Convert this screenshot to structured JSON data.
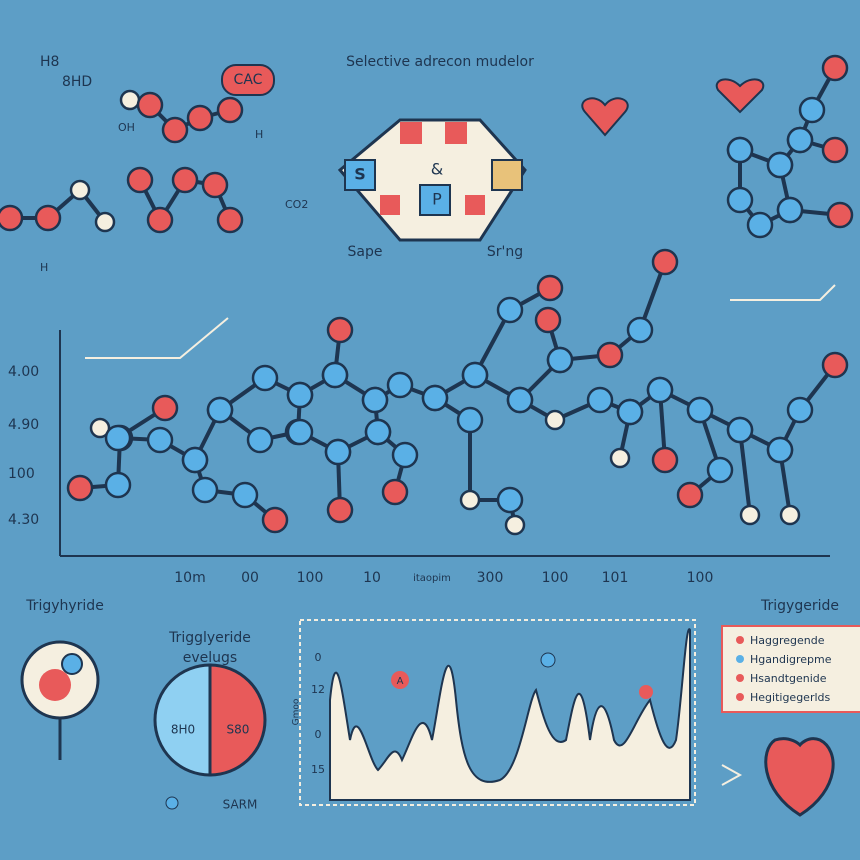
{
  "header": {
    "title": "Selective adrecon mudelor"
  },
  "top_left": {
    "labels": [
      "H8",
      "8HD",
      "CAC",
      "OH",
      "H",
      "CO2",
      "H"
    ]
  },
  "top_center": {
    "letters": [
      "S",
      "&",
      "P"
    ],
    "captions": [
      "Sape",
      "Sr'ng"
    ]
  },
  "main_chart": {
    "y_labels": [
      "4.00",
      "4.90",
      "100",
      "4.30"
    ],
    "x_labels": [
      "10m",
      "00",
      "100",
      "10",
      "itaopim",
      "300",
      "100",
      "101",
      "100"
    ]
  },
  "bottom": {
    "left_label": "Trigyhyride",
    "pie_title": [
      "Trigglyeride",
      "evelugs"
    ],
    "pie_labels": [
      "8H0",
      "S80"
    ],
    "pie_caption": "SARM",
    "panel_y_labels": [
      "0",
      "12",
      "0",
      "15"
    ],
    "panel_axis": "Gmoo",
    "panel_marker": "A",
    "right_label": "Trigygeride",
    "legend": [
      "Haggregende",
      "Hgandigrepme",
      "Hsandtgenide",
      "Hegitigegerlds"
    ]
  }
}
